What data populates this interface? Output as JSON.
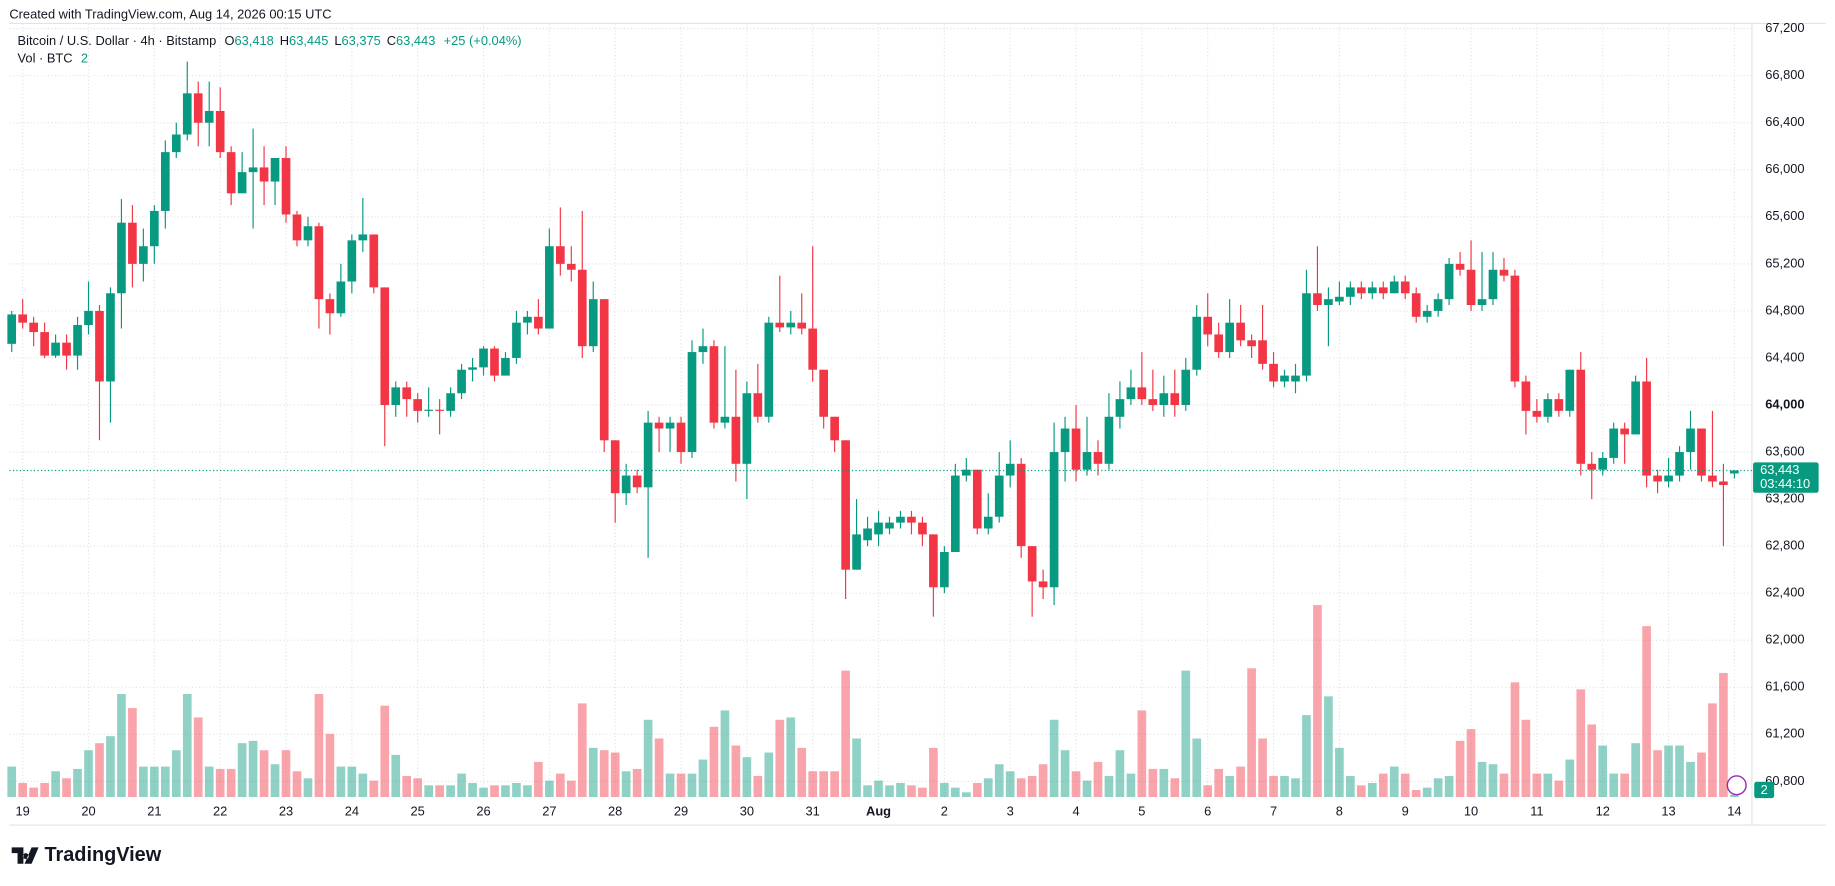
{
  "chart_data": {
    "type": "candlestick",
    "created": "Created with TradingView.com, Aug 14, 2026 00:15 UTC",
    "header": {
      "symbol": "Bitcoin / U.S. Dollar · 4h · Bitstamp",
      "o": "O",
      "open": "63,418",
      "h": "H",
      "high": "63,445",
      "l": "L",
      "low": "63,375",
      "c": "C",
      "close": "63,443",
      "change": "+25 (+0.04%)"
    },
    "volume_header": {
      "name": "Vol · BTC",
      "value": "2"
    },
    "last_price": {
      "value": 63443,
      "label": "63,443",
      "countdown": "03:44:10"
    },
    "volume_badge": "2",
    "logo": "TradingView",
    "up_color": "#089981",
    "down_color": "#f23645",
    "grid": true,
    "ylim": [
      60667,
      67264
    ],
    "yticks": [
      {
        "value": 60800,
        "label": "60,800"
      },
      {
        "value": 61200,
        "label": "61,200"
      },
      {
        "value": 61600,
        "label": "61,600"
      },
      {
        "value": 62000,
        "label": "62,000"
      },
      {
        "value": 62400,
        "label": "62,400"
      },
      {
        "value": 62800,
        "label": "62,800"
      },
      {
        "value": 63200,
        "label": "63,200"
      },
      {
        "value": 63600,
        "label": "63,600"
      },
      {
        "value": 64000,
        "label": "64,000"
      },
      {
        "value": 64400,
        "label": "64,400"
      },
      {
        "value": 64800,
        "label": "64,800"
      },
      {
        "value": 65200,
        "label": "65,200"
      },
      {
        "value": 65600,
        "label": "65,600"
      },
      {
        "value": 66000,
        "label": "66,000"
      },
      {
        "value": 66400,
        "label": "66,400"
      },
      {
        "value": 66800,
        "label": "66,800"
      },
      {
        "value": 67200,
        "label": "67,200"
      }
    ],
    "categories": [
      null,
      "19",
      null,
      null,
      null,
      null,
      null,
      "20",
      null,
      null,
      null,
      null,
      null,
      "21",
      null,
      null,
      null,
      null,
      null,
      "22",
      null,
      null,
      null,
      null,
      null,
      "23",
      null,
      null,
      null,
      null,
      null,
      "24",
      null,
      null,
      null,
      null,
      null,
      "25",
      null,
      null,
      null,
      null,
      null,
      "26",
      null,
      null,
      null,
      null,
      null,
      "27",
      null,
      null,
      null,
      null,
      null,
      "28",
      null,
      null,
      null,
      null,
      null,
      "29",
      null,
      null,
      null,
      null,
      null,
      "30",
      null,
      null,
      null,
      null,
      null,
      "31",
      null,
      null,
      null,
      null,
      null,
      "Aug",
      null,
      null,
      null,
      null,
      null,
      "2",
      null,
      null,
      null,
      null,
      null,
      "3",
      null,
      null,
      null,
      null,
      null,
      "4",
      null,
      null,
      null,
      null,
      null,
      "5",
      null,
      null,
      null,
      null,
      null,
      "6",
      null,
      null,
      null,
      null,
      null,
      "7",
      null,
      null,
      null,
      null,
      null,
      "8",
      null,
      null,
      null,
      null,
      null,
      "9",
      null,
      null,
      null,
      null,
      null,
      "10",
      null,
      null,
      null,
      null,
      null,
      "11",
      null,
      null,
      null,
      null,
      null,
      "12",
      null,
      null,
      null,
      null,
      null,
      "13",
      null,
      null,
      null,
      null,
      null,
      "14"
    ],
    "open": [
      64520,
      64770,
      64700,
      64620,
      64420,
      64530,
      64420,
      64680,
      64800,
      64200,
      64950,
      65550,
      65200,
      65350,
      65650,
      66150,
      66300,
      66650,
      66400,
      66500,
      66150,
      65800,
      65980,
      66020,
      65900,
      66100,
      65620,
      65400,
      65520,
      64900,
      64780,
      65050,
      65400,
      65450,
      65000,
      64000,
      64150,
      64050,
      63950,
      63960,
      63950,
      64100,
      64300,
      64320,
      64480,
      64250,
      64400,
      64700,
      64750,
      64650,
      65350,
      65200,
      65150,
      64500,
      64900,
      63700,
      63250,
      63400,
      63300,
      63850,
      63800,
      63850,
      63600,
      64450,
      64500,
      63850,
      63900,
      63500,
      64100,
      63900,
      64700,
      64660,
      64700,
      64650,
      64300,
      63900,
      63700,
      62600,
      62850,
      62900,
      62950,
      63000,
      63050,
      63000,
      62900,
      62450,
      62750,
      63400,
      63450,
      62950,
      63050,
      63400,
      63500,
      62800,
      62500,
      62450,
      63600,
      63800,
      63450,
      63600,
      63500,
      63900,
      64050,
      64150,
      64050,
      64000,
      64100,
      64000,
      64300,
      64750,
      64600,
      64450,
      64700,
      64550,
      64550,
      64350,
      64200,
      64200,
      64250,
      64950,
      64850,
      64880,
      64920,
      65000,
      64950,
      65000,
      64950,
      65050,
      64950,
      64750,
      64800,
      64900,
      65200,
      65150,
      64850,
      64900,
      65150,
      65100,
      64200,
      63950,
      63900,
      64050,
      63950,
      64300,
      63500,
      63450,
      63550,
      63800,
      63750,
      64200,
      63400,
      63350,
      63400,
      63600,
      63800,
      63400,
      63350,
      63418
    ],
    "high": [
      64800,
      64900,
      64750,
      64700,
      64600,
      64600,
      64750,
      65050,
      64850,
      65000,
      65750,
      65700,
      65500,
      65700,
      66250,
      66400,
      66920,
      66750,
      66750,
      66700,
      66200,
      66150,
      66350,
      66200,
      66100,
      66200,
      65650,
      65600,
      65550,
      64950,
      65200,
      65450,
      65760,
      65450,
      65000,
      64200,
      64200,
      64100,
      64150,
      64050,
      64150,
      64350,
      64400,
      64500,
      64500,
      64450,
      64800,
      64800,
      64900,
      65500,
      65680,
      65350,
      65650,
      65050,
      64900,
      63700,
      63500,
      63450,
      63950,
      63900,
      63900,
      63900,
      64550,
      64650,
      64550,
      64500,
      64300,
      64200,
      64350,
      64750,
      65100,
      64800,
      64950,
      65350,
      64300,
      63900,
      63700,
      63200,
      63050,
      63100,
      63050,
      63100,
      63100,
      63050,
      62900,
      62800,
      63500,
      63550,
      63450,
      63250,
      63600,
      63700,
      63550,
      62800,
      62600,
      63850,
      63900,
      64000,
      63900,
      63700,
      64100,
      64200,
      64300,
      64450,
      64300,
      64250,
      64300,
      64400,
      64850,
      64950,
      64700,
      64900,
      64850,
      64600,
      64850,
      64450,
      64300,
      64350,
      65150,
      65350,
      65000,
      65050,
      65050,
      65050,
      65050,
      65050,
      65100,
      65100,
      65000,
      64850,
      64950,
      65250,
      65300,
      65400,
      65300,
      65300,
      65250,
      65150,
      64250,
      64050,
      64100,
      64100,
      64300,
      64450,
      63600,
      63600,
      63850,
      63850,
      64250,
      64400,
      63450,
      63550,
      63650,
      63950,
      63800,
      63950,
      63500,
      63445
    ],
    "low": [
      64450,
      64650,
      64500,
      64400,
      64400,
      64300,
      64300,
      64600,
      63700,
      63850,
      64650,
      65000,
      65050,
      65200,
      65500,
      66100,
      66250,
      66200,
      66200,
      66100,
      65700,
      65800,
      65500,
      65700,
      65700,
      65550,
      65350,
      65350,
      64650,
      64600,
      64750,
      64950,
      65300,
      64950,
      63650,
      63900,
      63900,
      63850,
      63900,
      63750,
      63900,
      64050,
      64200,
      64250,
      64200,
      64250,
      64350,
      64600,
      64600,
      64650,
      65100,
      65050,
      64400,
      64450,
      63600,
      63000,
      63150,
      63250,
      62700,
      63600,
      63600,
      63500,
      63550,
      64350,
      63800,
      63800,
      63350,
      63200,
      63850,
      63850,
      64620,
      64600,
      64600,
      64200,
      63800,
      63600,
      62350,
      62600,
      62800,
      62800,
      62900,
      62950,
      62900,
      62800,
      62200,
      62400,
      62750,
      63350,
      62900,
      62900,
      63000,
      63300,
      62700,
      62200,
      62350,
      62300,
      63350,
      63350,
      63400,
      63400,
      63450,
      63800,
      64000,
      64000,
      63950,
      63900,
      63900,
      63950,
      64250,
      64500,
      64400,
      64400,
      64500,
      64400,
      64300,
      64150,
      64150,
      64100,
      64200,
      64800,
      64500,
      64850,
      64850,
      64900,
      64900,
      64900,
      64950,
      64900,
      64700,
      64700,
      64750,
      64850,
      65100,
      64800,
      64800,
      64850,
      65050,
      64150,
      63750,
      63850,
      63850,
      63900,
      63900,
      63400,
      63200,
      63400,
      63500,
      63500,
      63750,
      63300,
      63250,
      63300,
      63350,
      63450,
      63350,
      63300,
      62800,
      63375
    ],
    "close": [
      64770,
      64700,
      64620,
      64420,
      64530,
      64420,
      64680,
      64800,
      64200,
      64950,
      65550,
      65200,
      65350,
      65650,
      66150,
      66300,
      66650,
      66400,
      66500,
      66150,
      65800,
      65980,
      66020,
      65900,
      66100,
      65620,
      65400,
      65520,
      64900,
      64780,
      65050,
      65400,
      65450,
      65000,
      64000,
      64150,
      64050,
      63950,
      63960,
      63950,
      64100,
      64300,
      64320,
      64480,
      64250,
      64400,
      64700,
      64750,
      64650,
      65350,
      65200,
      65150,
      64500,
      64900,
      63700,
      63250,
      63400,
      63300,
      63850,
      63800,
      63850,
      63600,
      64450,
      64500,
      63850,
      63900,
      63500,
      64100,
      63900,
      64700,
      64660,
      64700,
      64650,
      64300,
      63900,
      63700,
      62600,
      62900,
      62950,
      63000,
      63000,
      63050,
      63000,
      62900,
      62450,
      62750,
      63400,
      63450,
      62950,
      63050,
      63400,
      63500,
      62800,
      62500,
      62450,
      63600,
      63800,
      63450,
      63600,
      63500,
      63900,
      64050,
      64150,
      64050,
      64000,
      64100,
      64000,
      64300,
      64750,
      64600,
      64450,
      64700,
      64550,
      64500,
      64350,
      64200,
      64250,
      64250,
      64950,
      64850,
      64900,
      64920,
      65000,
      64950,
      65000,
      64950,
      65050,
      64950,
      64750,
      64800,
      64900,
      65200,
      65150,
      64850,
      64900,
      65150,
      65100,
      64200,
      63950,
      63900,
      64050,
      63950,
      64300,
      63500,
      63450,
      63550,
      63800,
      63750,
      64200,
      63400,
      63350,
      63400,
      63600,
      63800,
      63400,
      63350,
      63320,
      63443
    ],
    "volume": [
      26,
      12,
      8,
      12,
      22,
      16,
      24,
      40,
      46,
      52,
      88,
      76,
      26,
      26,
      26,
      40,
      88,
      68,
      26,
      24,
      24,
      46,
      48,
      40,
      28,
      40,
      22,
      16,
      88,
      54,
      26,
      26,
      20,
      14,
      78,
      36,
      18,
      16,
      10,
      10,
      10,
      20,
      12,
      8,
      10,
      10,
      12,
      10,
      30,
      14,
      20,
      14,
      80,
      42,
      40,
      38,
      22,
      24,
      66,
      50,
      20,
      20,
      20,
      32,
      60,
      74,
      44,
      34,
      18,
      38,
      66,
      68,
      42,
      22,
      22,
      22,
      108,
      50,
      10,
      14,
      10,
      12,
      10,
      8,
      42,
      12,
      8,
      4,
      12,
      16,
      28,
      22,
      16,
      18,
      28,
      66,
      40,
      22,
      14,
      30,
      18,
      40,
      20,
      74,
      24,
      24,
      16,
      108,
      50,
      10,
      24,
      18,
      26,
      110,
      50,
      18,
      18,
      16,
      70,
      164,
      86,
      42,
      18,
      10,
      12,
      20,
      26,
      20,
      6,
      8,
      16,
      18,
      48,
      58,
      30,
      28,
      20,
      98,
      66,
      20,
      20,
      14,
      32,
      92,
      62,
      44,
      20,
      20,
      46,
      146,
      40,
      44,
      44,
      30,
      38,
      80,
      106,
      2
    ]
  }
}
